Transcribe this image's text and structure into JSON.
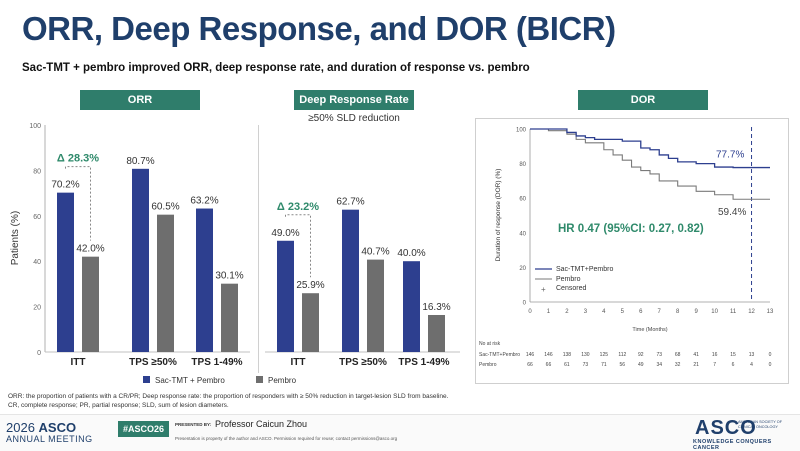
{
  "title": "ORR, Deep Response, and DOR (BICR)",
  "subtitle": "Sac-TMT + pembro improved ORR, deep response rate, and duration of response vs. pembro",
  "panels": {
    "orr": "ORR",
    "drr": "Deep Response Rate",
    "drr_note": "≥50% SLD reduction",
    "dor": "DOR"
  },
  "colors": {
    "sac": "#2d3f8f",
    "pembro": "#6e6e6e",
    "header": "#2f7d6b",
    "delta": "#2f8a6b"
  },
  "chart_data": [
    {
      "type": "bar",
      "panel": "ORR",
      "ylabel": "Patients (%)",
      "ylim": [
        0,
        100
      ],
      "yticks": [
        0,
        20,
        40,
        60,
        80,
        100
      ],
      "categories": [
        "ITT",
        "TPS ≥50%",
        "TPS 1-49%"
      ],
      "series": [
        {
          "name": "Sac-TMT + Pembro",
          "values": [
            70.2,
            80.7,
            63.2
          ],
          "labels": [
            "70.2%",
            "80.7%",
            "63.2%"
          ]
        },
        {
          "name": "Pembro",
          "values": [
            42.0,
            60.5,
            30.1
          ],
          "labels": [
            "42.0%",
            "60.5%",
            "30.1%"
          ]
        }
      ],
      "annotation": "Δ 28.3%"
    },
    {
      "type": "bar",
      "panel": "Deep Response Rate",
      "ylim": [
        0,
        100
      ],
      "categories": [
        "ITT",
        "TPS ≥50%",
        "TPS 1-49%"
      ],
      "series": [
        {
          "name": "Sac-TMT + Pembro",
          "values": [
            49.0,
            62.7,
            40.0
          ],
          "labels": [
            "49.0%",
            "62.7%",
            "40.0%"
          ]
        },
        {
          "name": "Pembro",
          "values": [
            25.9,
            40.7,
            16.3
          ],
          "labels": [
            "25.9%",
            "40.7%",
            "16.3%"
          ]
        }
      ],
      "annotation": "Δ 23.2%"
    },
    {
      "type": "line",
      "panel": "DOR",
      "ylabel": "Duration of response (DOR) (%)",
      "xlabel": "Time (Months)",
      "ylim": [
        0,
        100
      ],
      "yticks": [
        0,
        20,
        40,
        60,
        80,
        100
      ],
      "xlim": [
        0,
        13
      ],
      "xticks": [
        0,
        1,
        2,
        3,
        4,
        5,
        6,
        7,
        8,
        9,
        10,
        11,
        12,
        13
      ],
      "reference_line_x": 12,
      "series": [
        {
          "name": "Sac-TMT+Pembro",
          "x": [
            0,
            1.5,
            2,
            2.5,
            3,
            3.5,
            4,
            5,
            6,
            6.5,
            7,
            7.5,
            8,
            9,
            10,
            11,
            12,
            13
          ],
          "y": [
            100,
            100,
            98,
            96,
            95,
            94,
            94,
            93,
            89,
            88,
            85,
            83,
            81,
            80,
            78,
            77.7,
            77.7,
            77.7
          ],
          "end_label": "77.7%"
        },
        {
          "name": "Pembro",
          "x": [
            0,
            1,
            2,
            2.5,
            3,
            4,
            4.5,
            5,
            5.5,
            6,
            6.5,
            7,
            8,
            9,
            10,
            11,
            12,
            13
          ],
          "y": [
            100,
            99,
            97,
            94,
            92,
            88,
            85,
            82,
            78,
            76,
            74,
            70,
            67,
            64,
            62,
            59.4,
            59.4,
            59.4
          ],
          "end_label": "59.4%"
        }
      ],
      "legend": [
        "Sac-TMT+Pembro",
        "Pembro",
        "Censored"
      ],
      "hr_text": "HR 0.47 (95%CI: 0.27, 0.82)",
      "at_risk": {
        "header": "No at risk",
        "rows": [
          {
            "label": "Sac-TMT+Pembro",
            "values": [
              "146",
              "146",
              "138",
              "130",
              "125",
              "112",
              "92",
              "73",
              "68",
              "41",
              "16",
              "15",
              "13",
              "0"
            ]
          },
          {
            "label": "Pembro",
            "values": [
              "66",
              "66",
              "61",
              "73",
              "71",
              "56",
              "49",
              "34",
              "32",
              "21",
              "7",
              "6",
              "4",
              "0"
            ]
          }
        ]
      }
    }
  ],
  "legend": {
    "sac": "Sac-TMT + Pembro",
    "pembro": "Pembro"
  },
  "footnotes": [
    "ORR: the proportion of patients with a CR/PR; Deep response rate: the proportion of responders with ≥ 50% reduction in target-lesion SLD from baseline.",
    "CR, complete response; PR, partial response; SLD, sum of lesion diameters."
  ],
  "footer": {
    "year": "2026",
    "asco": "ASCO",
    "meeting": "ANNUAL MEETING",
    "hashtag": "#ASCO26",
    "presented_by": "PRESENTED BY:",
    "presenter": "Professor Caicun Zhou",
    "rights": "Presentation is property of the author and ASCO. Permission required for reuse; contact permissions@asco.org",
    "logo": "ASCO",
    "logo_sub": "AMERICAN SOCIETY OF CLINICAL ONCOLOGY",
    "logo_tag": "KNOWLEDGE CONQUERS CANCER"
  }
}
